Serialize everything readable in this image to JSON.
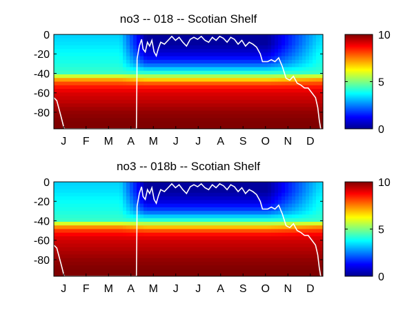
{
  "chart_data": [
    {
      "type": "heatmap",
      "title": "no3 -- 018 -- Scotian Shelf",
      "xlabel": "",
      "ylabel": "",
      "x_tick_labels": [
        "J",
        "F",
        "M",
        "A",
        "M",
        "J",
        "J",
        "A",
        "S",
        "O",
        "N",
        "D"
      ],
      "x_range_days": [
        0,
        365
      ],
      "y_ticks": [
        0,
        -20,
        -40,
        -60,
        -80
      ],
      "ylim": [
        -97,
        0
      ],
      "colorbar": {
        "ticks": [
          0,
          5,
          10
        ],
        "clim": [
          0,
          10
        ],
        "colormap": "jet"
      },
      "mixed_layer_line_color": "#ffffff",
      "mixed_layer_depth": {
        "day": [
          0,
          4,
          10,
          14,
          60,
          90,
          112,
          113,
          116,
          119,
          121,
          124,
          127,
          130,
          133,
          136,
          139,
          142,
          145,
          150,
          155,
          160,
          165,
          170,
          175,
          180,
          185,
          190,
          195,
          200,
          205,
          210,
          215,
          220,
          225,
          230,
          235,
          240,
          245,
          250,
          255,
          260,
          265,
          270,
          275,
          280,
          283,
          290,
          295,
          300,
          305,
          310,
          315,
          320,
          325,
          330,
          335,
          340,
          345,
          350,
          355,
          358,
          360,
          362
        ],
        "depth": [
          -65,
          -68,
          -85,
          -97,
          -97,
          -97,
          -97,
          -25,
          -12,
          -5,
          -15,
          -18,
          -8,
          -12,
          -6,
          -18,
          -22,
          -14,
          -8,
          -10,
          -6,
          -2,
          -6,
          -3,
          -8,
          -12,
          -5,
          -3,
          -5,
          -2,
          -6,
          -8,
          -3,
          -6,
          -2,
          -4,
          -8,
          -3,
          -5,
          -10,
          -6,
          -12,
          -8,
          -10,
          -13,
          -20,
          -28,
          -28,
          -26,
          -28,
          -24,
          -33,
          -45,
          -47,
          -43,
          -50,
          -52,
          -55,
          -55,
          -60,
          -65,
          -75,
          -88,
          -97
        ]
      },
      "nitrate_profile": {
        "depth": [
          0,
          -10,
          -20,
          -30,
          -40,
          -45,
          -50,
          -55,
          -60,
          -70,
          -80,
          -90,
          -97
        ],
        "winter_value": [
          3.3,
          3.5,
          3.8,
          4.0,
          4.3,
          6.8,
          8.0,
          8.7,
          9.1,
          9.4,
          9.8,
          10.0,
          10.0
        ],
        "summer_value": [
          0.3,
          0.3,
          0.9,
          2.0,
          4.3,
          6.2,
          7.8,
          8.7,
          9.1,
          9.4,
          9.8,
          10.0,
          10.0
        ]
      }
    },
    {
      "type": "heatmap",
      "title": "no3 -- 018b -- Scotian Shelf",
      "xlabel": "",
      "ylabel": "",
      "x_tick_labels": [
        "J",
        "F",
        "M",
        "A",
        "M",
        "J",
        "J",
        "A",
        "S",
        "O",
        "N",
        "D"
      ],
      "x_range_days": [
        0,
        365
      ],
      "y_ticks": [
        0,
        -20,
        -40,
        -60,
        -80
      ],
      "ylim": [
        -97,
        0
      ],
      "colorbar": {
        "ticks": [
          0,
          5,
          10
        ],
        "clim": [
          0,
          10
        ],
        "colormap": "jet"
      },
      "mixed_layer_line_color": "#ffffff",
      "mixed_layer_depth": {
        "day": [
          0,
          4,
          10,
          14,
          60,
          90,
          112,
          113,
          116,
          119,
          121,
          124,
          127,
          130,
          133,
          136,
          139,
          142,
          145,
          150,
          155,
          160,
          165,
          170,
          175,
          180,
          185,
          190,
          195,
          200,
          205,
          210,
          215,
          220,
          225,
          230,
          235,
          240,
          245,
          250,
          255,
          260,
          265,
          270,
          275,
          280,
          283,
          290,
          295,
          300,
          305,
          310,
          315,
          320,
          325,
          330,
          335,
          340,
          345,
          350,
          355,
          358,
          360,
          362
        ],
        "depth": [
          -65,
          -68,
          -85,
          -97,
          -97,
          -97,
          -97,
          -25,
          -12,
          -5,
          -15,
          -18,
          -8,
          -12,
          -6,
          -18,
          -22,
          -14,
          -8,
          -10,
          -6,
          -2,
          -6,
          -3,
          -8,
          -12,
          -5,
          -3,
          -5,
          -2,
          -6,
          -8,
          -3,
          -6,
          -2,
          -4,
          -8,
          -3,
          -5,
          -10,
          -6,
          -12,
          -8,
          -10,
          -13,
          -20,
          -28,
          -28,
          -26,
          -28,
          -24,
          -33,
          -45,
          -47,
          -43,
          -50,
          -52,
          -55,
          -55,
          -60,
          -65,
          -75,
          -88,
          -97
        ]
      },
      "nitrate_profile": {
        "depth": [
          0,
          -10,
          -20,
          -30,
          -40,
          -45,
          -50,
          -55,
          -60,
          -70,
          -80,
          -90,
          -97
        ],
        "winter_value": [
          3.3,
          3.5,
          3.8,
          4.0,
          4.3,
          7.0,
          8.2,
          8.9,
          9.2,
          9.5,
          9.8,
          10.0,
          10.0
        ],
        "summer_value": [
          0.3,
          0.3,
          0.9,
          2.0,
          4.3,
          6.4,
          7.9,
          8.8,
          9.2,
          9.5,
          9.8,
          10.0,
          10.0
        ]
      }
    }
  ]
}
